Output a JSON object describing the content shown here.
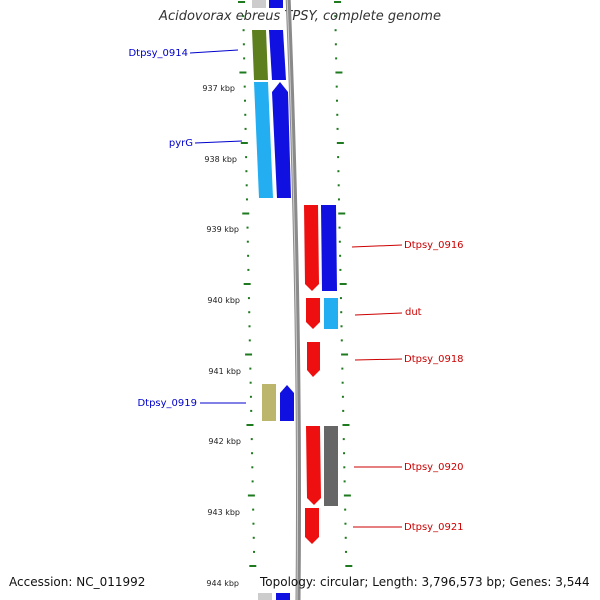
{
  "title": "Acidovorax ebreus TPSY, complete genome",
  "footer": {
    "accession": "Accession: NC_011992",
    "stats": "Topology: circular; Length: 3,796,573 bp; Genes: 3,544"
  },
  "colors": {
    "tick": "#1e7a1e",
    "backbone": "#888888",
    "forward_label": "#0000cc",
    "reverse_label": "#cc0000"
  },
  "ruler": {
    "unit": "kbp",
    "labels": [
      "937 kbp",
      "938 kbp",
      "939 kbp",
      "940 kbp",
      "941 kbp",
      "942 kbp",
      "943 kbp",
      "944 kbp"
    ]
  },
  "genes": [
    {
      "label": "Dtpsy_0914",
      "strand": "forward"
    },
    {
      "label": "pyrG",
      "strand": "forward"
    },
    {
      "label": "Dtpsy_0916",
      "strand": "reverse"
    },
    {
      "label": "dut",
      "strand": "reverse"
    },
    {
      "label": "Dtpsy_0918",
      "strand": "reverse"
    },
    {
      "label": "Dtpsy_0919",
      "strand": "forward"
    },
    {
      "label": "Dtpsy_0920",
      "strand": "reverse"
    },
    {
      "label": "Dtpsy_0921",
      "strand": "reverse"
    }
  ]
}
